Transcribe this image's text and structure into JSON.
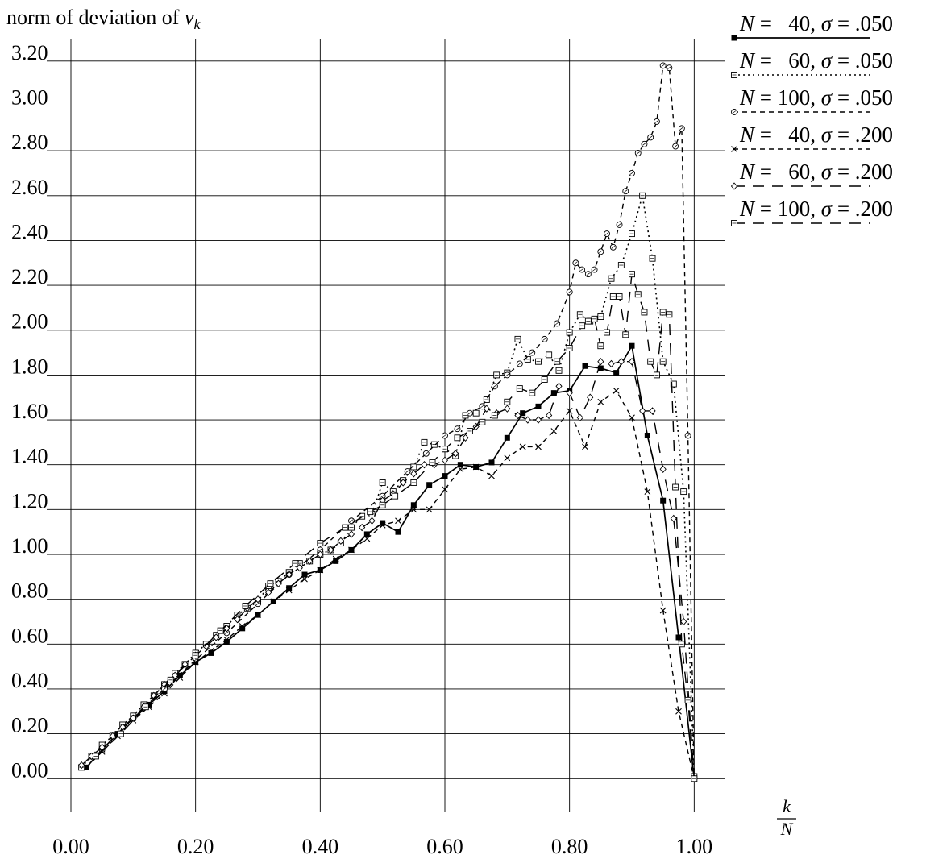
{
  "chart_data": {
    "type": "line",
    "title": "",
    "ylabel": "norm of deviation of v_k",
    "ylabel_main": "norm of deviation of ",
    "ylabel_var": "v",
    "ylabel_sub": "k",
    "xlabel_num": "k",
    "xlabel_den": "N",
    "xlim": [
      0.0,
      1.05
    ],
    "ylim": [
      -0.15,
      3.3
    ],
    "x_ticks": [
      "0.00",
      "0.20",
      "0.40",
      "0.60",
      "0.80",
      "1.00"
    ],
    "x_tick_values": [
      0.0,
      0.2,
      0.4,
      0.6,
      0.8,
      1.0
    ],
    "y_ticks": [
      "0.00",
      "0.20",
      "0.40",
      "0.60",
      "0.80",
      "1.00",
      "1.20",
      "1.40",
      "1.60",
      "1.80",
      "2.00",
      "2.20",
      "2.40",
      "2.60",
      "2.80",
      "3.00",
      "3.20"
    ],
    "y_tick_values": [
      0.0,
      0.2,
      0.4,
      0.6,
      0.8,
      1.0,
      1.2,
      1.4,
      1.6,
      1.8,
      2.0,
      2.2,
      2.4,
      2.6,
      2.8,
      3.0,
      3.2
    ],
    "grid": true,
    "legend_position": "top-right",
    "series": [
      {
        "name": "N = 40, σ = .050",
        "legend_parts": [
          "N",
          " =   40, ",
          "σ",
          " = .050"
        ],
        "dash": "solid",
        "marker": "filled-square",
        "x": [
          0.025,
          0.05,
          0.075,
          0.1,
          0.125,
          0.15,
          0.175,
          0.2,
          0.225,
          0.25,
          0.275,
          0.3,
          0.325,
          0.35,
          0.375,
          0.4,
          0.425,
          0.45,
          0.475,
          0.5,
          0.525,
          0.55,
          0.575,
          0.6,
          0.625,
          0.65,
          0.675,
          0.7,
          0.725,
          0.75,
          0.775,
          0.8,
          0.825,
          0.85,
          0.875,
          0.9,
          0.925,
          0.95,
          0.975,
          1.0
        ],
        "y": [
          0.05,
          0.13,
          0.2,
          0.27,
          0.33,
          0.39,
          0.46,
          0.52,
          0.56,
          0.61,
          0.67,
          0.73,
          0.79,
          0.85,
          0.91,
          0.93,
          0.97,
          1.02,
          1.09,
          1.14,
          1.1,
          1.22,
          1.31,
          1.35,
          1.4,
          1.39,
          1.41,
          1.52,
          1.63,
          1.66,
          1.72,
          1.73,
          1.84,
          1.83,
          1.81,
          1.93,
          1.53,
          1.24,
          0.63,
          0.0
        ]
      },
      {
        "name": "N = 60, σ = .050",
        "legend_parts": [
          "N",
          " =   60, ",
          "σ",
          " = .050"
        ],
        "dash": "dotted",
        "marker": "boxed-square",
        "x": [
          0.017,
          0.033,
          0.05,
          0.067,
          0.083,
          0.1,
          0.117,
          0.133,
          0.15,
          0.167,
          0.183,
          0.2,
          0.217,
          0.233,
          0.25,
          0.267,
          0.283,
          0.3,
          0.317,
          0.333,
          0.35,
          0.367,
          0.383,
          0.4,
          0.417,
          0.433,
          0.45,
          0.467,
          0.483,
          0.5,
          0.517,
          0.533,
          0.55,
          0.567,
          0.583,
          0.6,
          0.617,
          0.633,
          0.65,
          0.667,
          0.683,
          0.7,
          0.717,
          0.733,
          0.75,
          0.767,
          0.783,
          0.8,
          0.817,
          0.833,
          0.85,
          0.867,
          0.883,
          0.9,
          0.917,
          0.933,
          0.95,
          0.967,
          0.983,
          1.0
        ],
        "y": [
          0.05,
          0.1,
          0.15,
          0.19,
          0.24,
          0.28,
          0.33,
          0.37,
          0.42,
          0.47,
          0.51,
          0.56,
          0.6,
          0.64,
          0.68,
          0.73,
          0.76,
          0.79,
          0.86,
          0.88,
          0.92,
          0.96,
          0.97,
          1.0,
          1.02,
          1.05,
          1.12,
          1.17,
          1.18,
          1.32,
          1.28,
          1.33,
          1.39,
          1.5,
          1.49,
          1.47,
          1.44,
          1.62,
          1.63,
          1.69,
          1.8,
          1.81,
          1.96,
          1.87,
          1.86,
          1.89,
          1.82,
          1.99,
          2.07,
          2.04,
          2.06,
          2.23,
          2.29,
          2.43,
          2.6,
          2.32,
          1.86,
          1.76,
          1.28,
          0.01
        ]
      },
      {
        "name": "N = 100, σ = .050",
        "legend_parts": [
          "N",
          " = 100, ",
          "σ",
          " = .050"
        ],
        "dash": "dashed",
        "marker": "circle",
        "x": [
          0.05,
          0.1,
          0.15,
          0.2,
          0.25,
          0.3,
          0.35,
          0.4,
          0.45,
          0.5,
          0.54,
          0.57,
          0.6,
          0.62,
          0.64,
          0.66,
          0.68,
          0.7,
          0.72,
          0.74,
          0.76,
          0.78,
          0.8,
          0.81,
          0.82,
          0.83,
          0.84,
          0.85,
          0.86,
          0.87,
          0.88,
          0.89,
          0.9,
          0.91,
          0.92,
          0.93,
          0.94,
          0.95,
          0.96,
          0.97,
          0.98,
          0.99,
          1.0
        ],
        "y": [
          0.13,
          0.27,
          0.4,
          0.53,
          0.65,
          0.78,
          0.91,
          1.02,
          1.15,
          1.26,
          1.37,
          1.45,
          1.53,
          1.56,
          1.63,
          1.66,
          1.75,
          1.8,
          1.85,
          1.9,
          1.96,
          2.03,
          2.17,
          2.3,
          2.27,
          2.25,
          2.27,
          2.35,
          2.43,
          2.37,
          2.47,
          2.62,
          2.7,
          2.79,
          2.83,
          2.86,
          2.93,
          3.18,
          3.17,
          2.82,
          2.9,
          1.53,
          0.0
        ]
      },
      {
        "name": "N = 40, σ = .200",
        "legend_parts": [
          "N",
          " =   40, ",
          "σ",
          " = .200"
        ],
        "dash": "dashed",
        "marker": "cross",
        "x": [
          0.025,
          0.05,
          0.075,
          0.1,
          0.125,
          0.15,
          0.175,
          0.2,
          0.225,
          0.25,
          0.275,
          0.3,
          0.325,
          0.35,
          0.375,
          0.4,
          0.425,
          0.45,
          0.475,
          0.5,
          0.525,
          0.55,
          0.575,
          0.6,
          0.625,
          0.65,
          0.675,
          0.7,
          0.725,
          0.75,
          0.775,
          0.8,
          0.825,
          0.85,
          0.875,
          0.9,
          0.925,
          0.95,
          0.975,
          1.0
        ],
        "y": [
          0.05,
          0.12,
          0.19,
          0.26,
          0.32,
          0.38,
          0.45,
          0.52,
          0.57,
          0.62,
          0.68,
          0.73,
          0.79,
          0.84,
          0.89,
          0.93,
          0.98,
          1.02,
          1.07,
          1.13,
          1.15,
          1.2,
          1.2,
          1.29,
          1.38,
          1.39,
          1.35,
          1.43,
          1.48,
          1.48,
          1.55,
          1.64,
          1.48,
          1.68,
          1.73,
          1.61,
          1.28,
          0.75,
          0.3,
          0.0
        ]
      },
      {
        "name": "N = 60, σ = .200",
        "legend_parts": [
          "N",
          " =   60, ",
          "σ",
          " = .200"
        ],
        "dash": "long-dashed",
        "marker": "diamond",
        "x": [
          0.017,
          0.033,
          0.05,
          0.067,
          0.083,
          0.1,
          0.117,
          0.133,
          0.15,
          0.167,
          0.183,
          0.2,
          0.217,
          0.233,
          0.25,
          0.267,
          0.283,
          0.3,
          0.317,
          0.333,
          0.35,
          0.367,
          0.383,
          0.4,
          0.417,
          0.433,
          0.45,
          0.467,
          0.483,
          0.5,
          0.517,
          0.533,
          0.55,
          0.567,
          0.583,
          0.6,
          0.617,
          0.633,
          0.65,
          0.667,
          0.683,
          0.7,
          0.717,
          0.733,
          0.75,
          0.767,
          0.783,
          0.8,
          0.817,
          0.833,
          0.85,
          0.867,
          0.883,
          0.9,
          0.917,
          0.933,
          0.95,
          0.967,
          0.983,
          1.0
        ],
        "y": [
          0.06,
          0.1,
          0.14,
          0.19,
          0.23,
          0.27,
          0.32,
          0.37,
          0.42,
          0.46,
          0.51,
          0.55,
          0.59,
          0.63,
          0.67,
          0.71,
          0.76,
          0.8,
          0.83,
          0.87,
          0.91,
          0.94,
          0.97,
          1.0,
          1.02,
          1.06,
          1.09,
          1.12,
          1.15,
          1.24,
          1.27,
          1.32,
          1.36,
          1.4,
          1.4,
          1.42,
          1.45,
          1.52,
          1.57,
          1.65,
          1.63,
          1.65,
          1.62,
          1.6,
          1.6,
          1.62,
          1.75,
          1.72,
          1.61,
          1.7,
          1.86,
          1.85,
          1.86,
          1.86,
          1.64,
          1.64,
          1.38,
          1.16,
          0.7,
          0.0
        ]
      },
      {
        "name": "N = 100, σ = .200",
        "legend_parts": [
          "N",
          " = 100, ",
          "σ",
          " = .200"
        ],
        "dash": "long-dashed",
        "marker": "boxed-square",
        "x": [
          0.04,
          0.08,
          0.12,
          0.16,
          0.2,
          0.24,
          0.28,
          0.32,
          0.36,
          0.4,
          0.44,
          0.48,
          0.5,
          0.52,
          0.55,
          0.58,
          0.6,
          0.62,
          0.64,
          0.66,
          0.68,
          0.7,
          0.72,
          0.74,
          0.76,
          0.78,
          0.8,
          0.82,
          0.83,
          0.84,
          0.85,
          0.86,
          0.87,
          0.88,
          0.89,
          0.9,
          0.91,
          0.92,
          0.93,
          0.94,
          0.95,
          0.96,
          0.97,
          0.98,
          0.99,
          1.0
        ],
        "y": [
          0.1,
          0.2,
          0.32,
          0.44,
          0.55,
          0.66,
          0.77,
          0.87,
          0.96,
          1.05,
          1.12,
          1.19,
          1.22,
          1.26,
          1.32,
          1.41,
          1.47,
          1.52,
          1.55,
          1.59,
          1.62,
          1.68,
          1.74,
          1.72,
          1.78,
          1.86,
          1.92,
          2.02,
          2.04,
          2.05,
          1.93,
          1.99,
          2.15,
          2.15,
          1.98,
          2.25,
          2.16,
          2.08,
          1.86,
          1.8,
          2.08,
          2.07,
          1.3,
          0.6,
          0.35,
          0.0
        ]
      }
    ]
  }
}
